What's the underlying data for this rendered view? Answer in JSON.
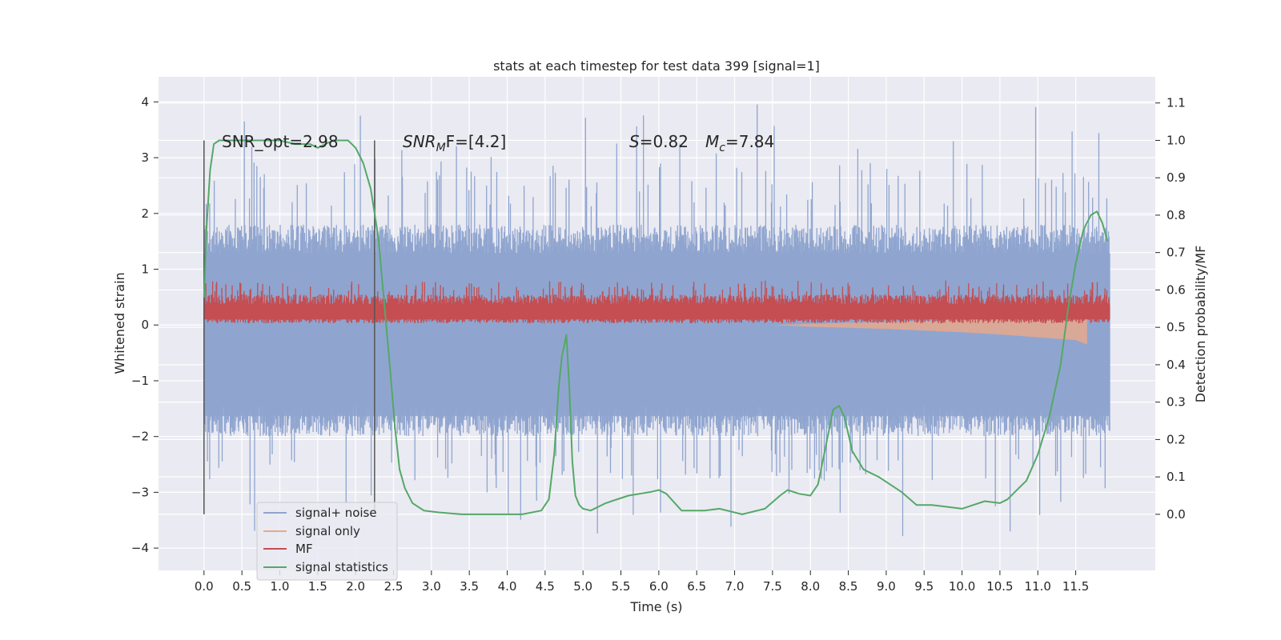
{
  "chart_data": {
    "type": "line",
    "title": "stats at each timestep for test data 399 [signal=1]",
    "xlabel": "Time (s)",
    "ylabel": "Whitened strain",
    "y2label": "Detection probability/MF",
    "xlim": [
      -0.6,
      12.55
    ],
    "ylim": [
      -4.4,
      4.45
    ],
    "y2lim": [
      -0.15,
      1.17
    ],
    "x_ticks": [
      0.0,
      0.5,
      1.0,
      1.5,
      2.0,
      2.5,
      3.0,
      3.5,
      4.0,
      4.5,
      5.0,
      5.5,
      6.0,
      6.5,
      7.0,
      7.5,
      8.0,
      8.5,
      9.0,
      9.5,
      10.0,
      10.5,
      11.0,
      11.5
    ],
    "x_tick_labels": [
      "0.0",
      "0.5",
      "1.0",
      "1.5",
      "2.0",
      "2.5",
      "3.0",
      "3.5",
      "4.0",
      "4.5",
      "5.0",
      "5.5",
      "6.0",
      "6.5",
      "7.0",
      "7.5",
      "8.0",
      "8.5",
      "9.0",
      "9.5",
      "10.0",
      "10.5",
      "11.0",
      "11.5"
    ],
    "y_ticks": [
      4,
      3,
      2,
      1,
      0,
      -1,
      -2,
      -3,
      -4
    ],
    "y_tick_labels": [
      "4",
      "3",
      "2",
      "1",
      "0",
      "−1",
      "−2",
      "−3",
      "−4"
    ],
    "y2_ticks": [
      1.1,
      1.0,
      0.9,
      0.8,
      0.7,
      0.6,
      0.5,
      0.4,
      0.3,
      0.2,
      0.1,
      0.0
    ],
    "y2_tick_labels": [
      "1.1",
      "1.0",
      "0.9",
      "0.8",
      "0.7",
      "0.6",
      "0.5",
      "0.4",
      "0.3",
      "0.2",
      "0.1",
      "0.0"
    ],
    "grid": true,
    "legend": {
      "position": "lower-left",
      "entries": [
        {
          "label": "signal+ noise",
          "color": "#8fa5cf"
        },
        {
          "label": "signal only",
          "color": "#e8a88c"
        },
        {
          "label": "MF",
          "color": "#c44e52"
        },
        {
          "label": "signal statistics",
          "color": "#55a868"
        }
      ]
    },
    "annotations": {
      "snr_opt": "SNR_opt=2.98",
      "snr_mf_var": "SNR",
      "snr_mf_sub": "M",
      "snr_mf_rest": "F=[4.2]",
      "s_var": "S",
      "s_rest": "=0.82",
      "mc_var": "M",
      "mc_sub": "c",
      "mc_rest": "=7.84"
    },
    "vertical_markers_x": [
      0.0,
      2.25
    ],
    "series": [
      {
        "name": "signal+ noise",
        "color": "#8fa5cf",
        "x_range": [
          0.0,
          11.95
        ],
        "typical_range": [
          -1.9,
          1.8
        ],
        "extremes": [
          -3.9,
          4.1
        ]
      },
      {
        "name": "signal only",
        "color": "#e8a88c",
        "x": [
          7.5,
          8.0,
          8.5,
          9.0,
          9.5,
          10.0,
          10.5,
          11.0,
          11.5,
          11.65
        ],
        "lower": [
          0.0,
          -0.03,
          -0.05,
          -0.07,
          -0.1,
          -0.13,
          -0.17,
          -0.22,
          -0.27,
          -0.35
        ],
        "upper": [
          0.0,
          0.02,
          0.04,
          0.05,
          0.07,
          0.1,
          0.12,
          0.16,
          0.2,
          0.25
        ]
      },
      {
        "name": "MF",
        "color": "#c44e52",
        "x_range": [
          0.0,
          11.95
        ],
        "typical_range": [
          0.03,
          0.55
        ],
        "extremes": [
          0.0,
          0.8
        ]
      },
      {
        "name": "signal statistics",
        "color": "#55a868",
        "x": [
          0.0,
          0.03,
          0.08,
          0.13,
          0.2,
          0.3,
          0.5,
          0.8,
          1.0,
          1.2,
          1.4,
          1.5,
          1.7,
          1.9,
          2.0,
          2.1,
          2.2,
          2.3,
          2.38,
          2.45,
          2.52,
          2.58,
          2.65,
          2.75,
          2.9,
          3.1,
          3.4,
          3.8,
          4.2,
          4.45,
          4.55,
          4.62,
          4.68,
          4.72,
          4.78,
          4.82,
          4.86,
          4.9,
          4.95,
          5.0,
          5.1,
          5.3,
          5.6,
          5.9,
          6.0,
          6.1,
          6.3,
          6.6,
          6.8,
          7.1,
          7.4,
          7.6,
          7.7,
          7.85,
          8.0,
          8.1,
          8.2,
          8.3,
          8.38,
          8.45,
          8.55,
          8.7,
          8.9,
          9.2,
          9.4,
          9.6,
          9.8,
          10.0,
          10.15,
          10.3,
          10.5,
          10.6,
          10.7,
          10.85,
          11.0,
          11.15,
          11.3,
          11.4,
          11.5,
          11.6,
          11.7,
          11.78,
          11.85,
          11.92
        ],
        "y": [
          0.58,
          0.75,
          0.92,
          0.99,
          1.0,
          1.0,
          1.0,
          1.0,
          1.0,
          0.99,
          0.99,
          0.98,
          1.0,
          1.0,
          0.98,
          0.94,
          0.87,
          0.74,
          0.56,
          0.4,
          0.23,
          0.12,
          0.07,
          0.03,
          0.01,
          0.005,
          0.0,
          0.0,
          0.0,
          0.01,
          0.04,
          0.16,
          0.34,
          0.42,
          0.48,
          0.34,
          0.14,
          0.05,
          0.025,
          0.015,
          0.01,
          0.03,
          0.05,
          0.06,
          0.065,
          0.055,
          0.01,
          0.01,
          0.015,
          0.0,
          0.015,
          0.05,
          0.065,
          0.055,
          0.05,
          0.08,
          0.18,
          0.28,
          0.29,
          0.26,
          0.17,
          0.12,
          0.1,
          0.06,
          0.025,
          0.025,
          0.02,
          0.015,
          0.025,
          0.035,
          0.03,
          0.04,
          0.06,
          0.09,
          0.16,
          0.26,
          0.4,
          0.55,
          0.67,
          0.76,
          0.8,
          0.81,
          0.78,
          0.73
        ]
      }
    ]
  }
}
